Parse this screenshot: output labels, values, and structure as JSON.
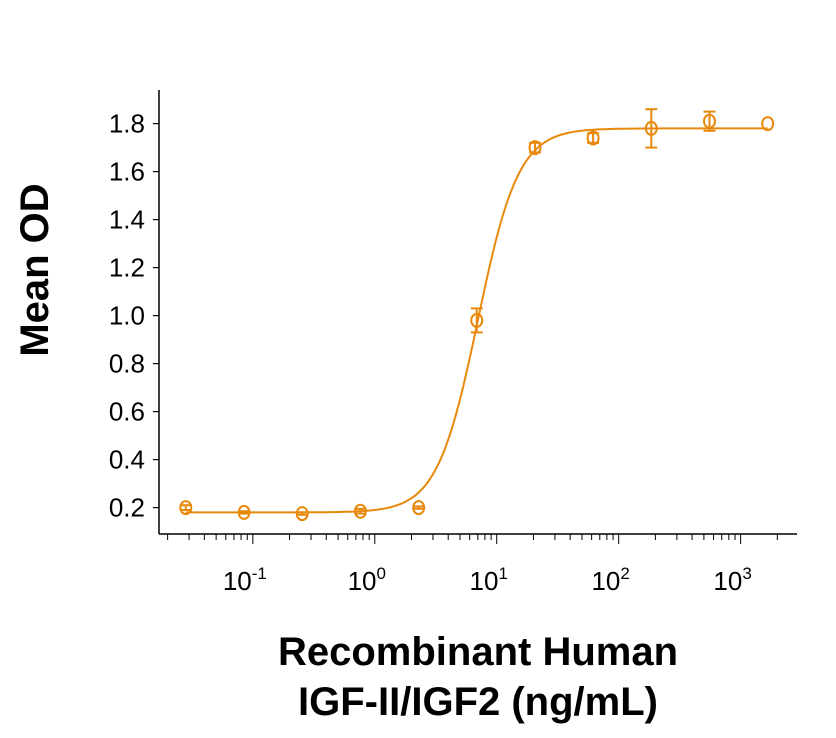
{
  "chart_data": {
    "type": "scatter",
    "title": "",
    "xlabel": [
      "Recombinant Human",
      "IGF-II/IGF2 (ng/mL)"
    ],
    "ylabel": "Mean OD",
    "x_scale": "log",
    "xlim": [
      0.017,
      2900
    ],
    "ylim": [
      0.09,
      1.94
    ],
    "yticks": [
      "0.2",
      "0.4",
      "0.6",
      "0.8",
      "1.0",
      "1.2",
      "1.4",
      "1.6",
      "1.8"
    ],
    "xticks": [
      {
        "base": "10",
        "exp": "-1"
      },
      {
        "base": "10",
        "exp": "0"
      },
      {
        "base": "10",
        "exp": "1"
      },
      {
        "base": "10",
        "exp": "2"
      },
      {
        "base": "10",
        "exp": "3"
      }
    ],
    "grid": false,
    "color": "#E8890C",
    "series": [
      {
        "x": [
          0.0282,
          0.0847,
          0.254,
          0.762,
          2.29,
          6.86,
          20.6,
          61.7,
          185.2,
          555.6,
          1667
        ],
        "y": [
          0.2,
          0.18,
          0.175,
          0.185,
          0.2,
          0.98,
          1.7,
          1.74,
          1.78,
          1.81,
          1.8
        ],
        "error": [
          0.01,
          0.005,
          0.005,
          0.01,
          0.005,
          0.05,
          0.02,
          0.02,
          0.08,
          0.04,
          0.0
        ]
      }
    ],
    "fit": {
      "model": "4PL",
      "bottom": 0.18,
      "top": 1.78,
      "ec50": 7.0,
      "hill": 2.6
    }
  }
}
